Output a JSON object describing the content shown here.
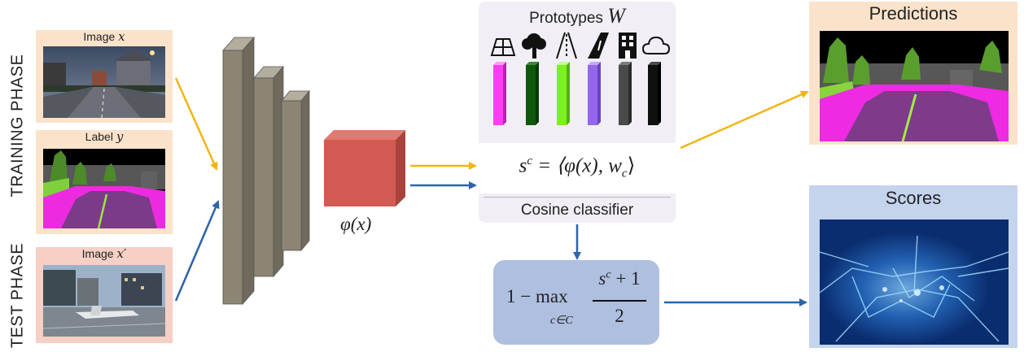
{
  "phases": {
    "training": "TRAINING PHASE",
    "test": "TEST PHASE"
  },
  "inputs": {
    "image_x": {
      "label": "Image",
      "var": "x"
    },
    "label_y": {
      "label": "Label",
      "var": "y"
    },
    "image_x_prime": {
      "label": "Image",
      "var": "x′"
    }
  },
  "feature": {
    "label": "φ(x)"
  },
  "classifier": {
    "title": "Prototypes",
    "title_var": "W",
    "formula": "s",
    "formula_sup": "c",
    "formula_rest": " = ⟨φ(x), w",
    "formula_sub": "c",
    "formula_close": "⟩",
    "footer": "Cosine classifier",
    "prototypes": [
      {
        "icon": "road-icon",
        "color": "#ff3df2"
      },
      {
        "icon": "tree-icon",
        "color": "#0e5a0a"
      },
      {
        "icon": "lane-marking-icon",
        "color": "#7cf022"
      },
      {
        "icon": "road-perspective-icon",
        "color": "#9466ee"
      },
      {
        "icon": "building-icon",
        "color": "#4a4a4a"
      },
      {
        "icon": "cloud-icon",
        "color": "#101010"
      }
    ]
  },
  "score_formula": {
    "prefix": "1 − max",
    "subscript": "c∈C",
    "numerator": "s",
    "numerator_sup": "c",
    "numerator_rest": " + 1",
    "denominator": "2"
  },
  "outputs": {
    "predictions": "Predictions",
    "scores": "Scores"
  },
  "colors": {
    "training_arrow": "#f2b514",
    "test_arrow": "#2d63a8",
    "network_block": "#8c8573",
    "feature_block": "#d15b52",
    "score_box": "#aebfe0",
    "classifier_bg": "#f1eff5",
    "input_label_bg": "#fbe3cb",
    "test_label_bg": "#f6cfc5"
  }
}
